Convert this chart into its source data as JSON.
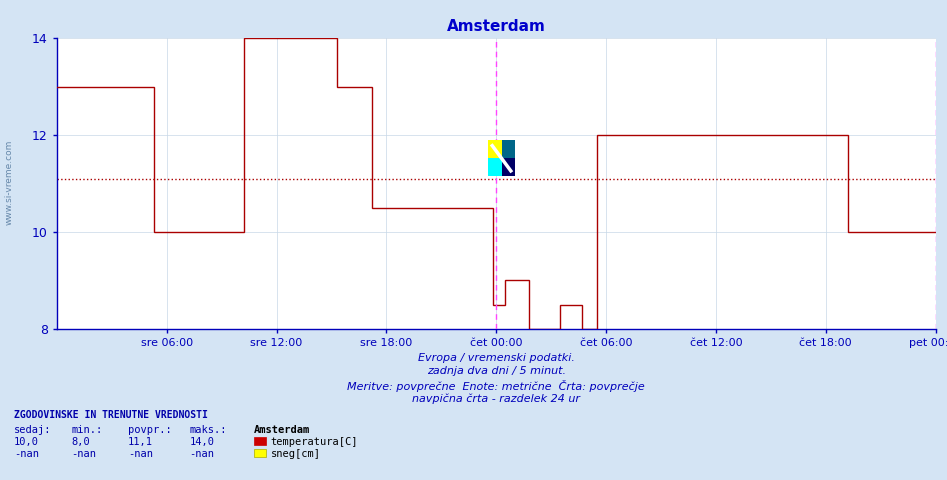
{
  "title": "Amsterdam",
  "title_color": "#0000cc",
  "bg_color": "#d4e4f4",
  "plot_bg_color": "#ffffff",
  "grid_color": "#c8d8e8",
  "axis_color": "#0000bb",
  "line_color": "#aa0000",
  "avg_line_color": "#aa0000",
  "vline_color": "#ff44ff",
  "ylim": [
    8,
    14
  ],
  "yticks": [
    8,
    10,
    12,
    14
  ],
  "xlabel_items": [
    "sre 06:00",
    "sre 12:00",
    "sre 18:00",
    "čet 00:00",
    "čet 06:00",
    "čet 12:00",
    "čet 18:00",
    "pet 00:00"
  ],
  "avg_value": 11.1,
  "footer_line1": "Evropa / vremenski podatki.",
  "footer_line2": "zadnja dva dni / 5 minut.",
  "footer_line3": "Meritve: povprečne  Enote: metrične  Črta: povprečje",
  "footer_line4": "navpična črta - razdelek 24 ur",
  "legend_title": "ZGODOVINSKE IN TRENUTNE VREDNOSTI",
  "legend_headers": [
    "sedaj:",
    "min.:",
    "povpr.:",
    "maks.:"
  ],
  "legend_values": [
    "10,0",
    "8,0",
    "11,1",
    "14,0"
  ],
  "legend_nan_values": [
    "-nan",
    "-nan",
    "-nan",
    "-nan"
  ],
  "legend_series": [
    "temperatura[C]",
    "sneg[cm]"
  ],
  "legend_colors": [
    "#cc0000",
    "#ffff00"
  ],
  "legend_color_borders": [
    "#cc0000",
    "#aaaa00"
  ],
  "amsterdam_label": "Amsterdam",
  "temp_data": [
    [
      0.0,
      13.0
    ],
    [
      5.3,
      13.0
    ],
    [
      5.3,
      10.0
    ],
    [
      10.2,
      10.0
    ],
    [
      10.2,
      14.0
    ],
    [
      15.3,
      14.0
    ],
    [
      15.3,
      13.0
    ],
    [
      17.2,
      13.0
    ],
    [
      17.2,
      10.5
    ],
    [
      23.8,
      10.5
    ],
    [
      23.8,
      8.5
    ],
    [
      24.5,
      8.5
    ],
    [
      24.5,
      9.0
    ],
    [
      25.8,
      9.0
    ],
    [
      25.8,
      8.0
    ],
    [
      27.5,
      8.0
    ],
    [
      27.5,
      8.5
    ],
    [
      28.7,
      8.5
    ],
    [
      28.7,
      8.0
    ],
    [
      29.5,
      8.0
    ],
    [
      29.5,
      12.0
    ],
    [
      43.2,
      12.0
    ],
    [
      43.2,
      10.0
    ],
    [
      48.0,
      10.0
    ]
  ]
}
